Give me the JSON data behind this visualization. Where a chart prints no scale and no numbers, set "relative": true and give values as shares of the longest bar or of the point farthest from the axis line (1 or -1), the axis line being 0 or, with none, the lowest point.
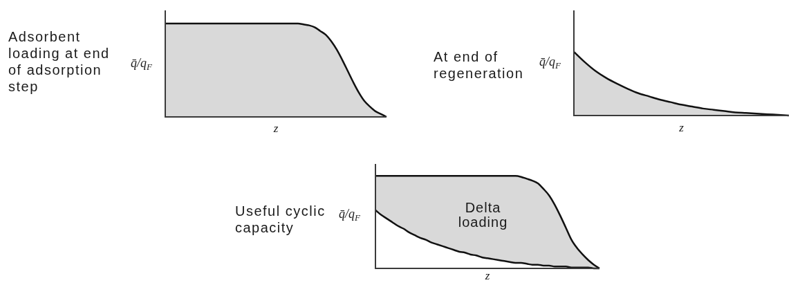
{
  "chart_data": [
    {
      "type": "area",
      "title": "Adsorbent loading at end of adsorption step",
      "xlabel": "z",
      "ylabel": "q̄/q$_{F}$",
      "relative": true,
      "categories": [
        null,
        null,
        null,
        null,
        null,
        null,
        null,
        null,
        null,
        null,
        null,
        null,
        null,
        null,
        null,
        null,
        null,
        null,
        null,
        null,
        null,
        null,
        null,
        null,
        null,
        null,
        null,
        null,
        null,
        null,
        null,
        null,
        null,
        null,
        null,
        null,
        null,
        null,
        null,
        null,
        null
      ],
      "color": "#d9d9d9",
      "values": [
        1,
        1,
        1,
        1,
        1,
        1,
        1,
        1,
        1,
        1,
        1,
        1,
        1,
        1,
        1,
        1,
        1,
        1,
        1,
        1,
        1,
        1,
        1,
        1,
        1,
        0.99,
        0.98,
        0.96,
        0.92,
        0.88,
        0.81,
        0.72,
        0.61,
        0.49,
        0.37,
        0.26,
        0.17,
        0.11,
        0.06,
        0.03,
        0
      ]
    },
    {
      "type": "area",
      "title": "At end of regeneration",
      "xlabel": "z",
      "ylabel": "q̄/q$_{F}$",
      "relative": true,
      "categories": [
        null,
        null,
        null,
        null,
        null,
        null,
        null,
        null,
        null,
        null,
        null,
        null,
        null,
        null,
        null,
        null,
        null,
        null,
        null,
        null,
        null
      ],
      "color": "#d9d9d9",
      "values": [
        1,
        0.84,
        0.7,
        0.59,
        0.5,
        0.42,
        0.35,
        0.3,
        0.25,
        0.21,
        0.17,
        0.14,
        0.11,
        0.09,
        0.07,
        0.05,
        0.04,
        0.03,
        0.02,
        0.01,
        0
      ]
    },
    {
      "type": "area",
      "title": "Useful cyclic capacity",
      "xlabel": "z",
      "ylabel": "q̄/q$_{F}$",
      "relative": true,
      "annotations": [
        "Delta loading"
      ],
      "categories": [
        null,
        null,
        null,
        null,
        null,
        null,
        null,
        null,
        null,
        null,
        null,
        null,
        null,
        null,
        null,
        null,
        null,
        null,
        null,
        null,
        null,
        null,
        null,
        null,
        null,
        null,
        null,
        null,
        null,
        null,
        null,
        null,
        null,
        null,
        null,
        null,
        null,
        null,
        null,
        null,
        null
      ],
      "series": [
        {
          "color": "#d9d9d9",
          "values": [
            1,
            1,
            1,
            1,
            1,
            1,
            1,
            1,
            1,
            1,
            1,
            1,
            1,
            1,
            1,
            1,
            1,
            1,
            1,
            1,
            1,
            1,
            1,
            1,
            1,
            1,
            0.99,
            0.97,
            0.95,
            0.92,
            0.86,
            0.79,
            0.69,
            0.57,
            0.44,
            0.31,
            0.22,
            0.15,
            0.09,
            0.04,
            0
          ]
        },
        {
          "type": "line",
          "color": "#111111",
          "values": [
            0.63,
            0.58,
            0.54,
            0.5,
            0.46,
            0.43,
            0.39,
            0.36,
            0.33,
            0.31,
            0.28,
            0.26,
            0.24,
            0.22,
            0.2,
            0.18,
            0.17,
            0.15,
            0.14,
            0.12,
            0.11,
            0.1,
            0.09,
            0.08,
            0.07,
            0.06,
            0.06,
            0.05,
            0.04,
            0.04,
            0.03,
            0.03,
            0.02,
            0.02,
            0.02,
            0.01,
            0.01,
            0.01,
            0.01,
            0,
            0
          ]
        }
      ]
    }
  ]
}
